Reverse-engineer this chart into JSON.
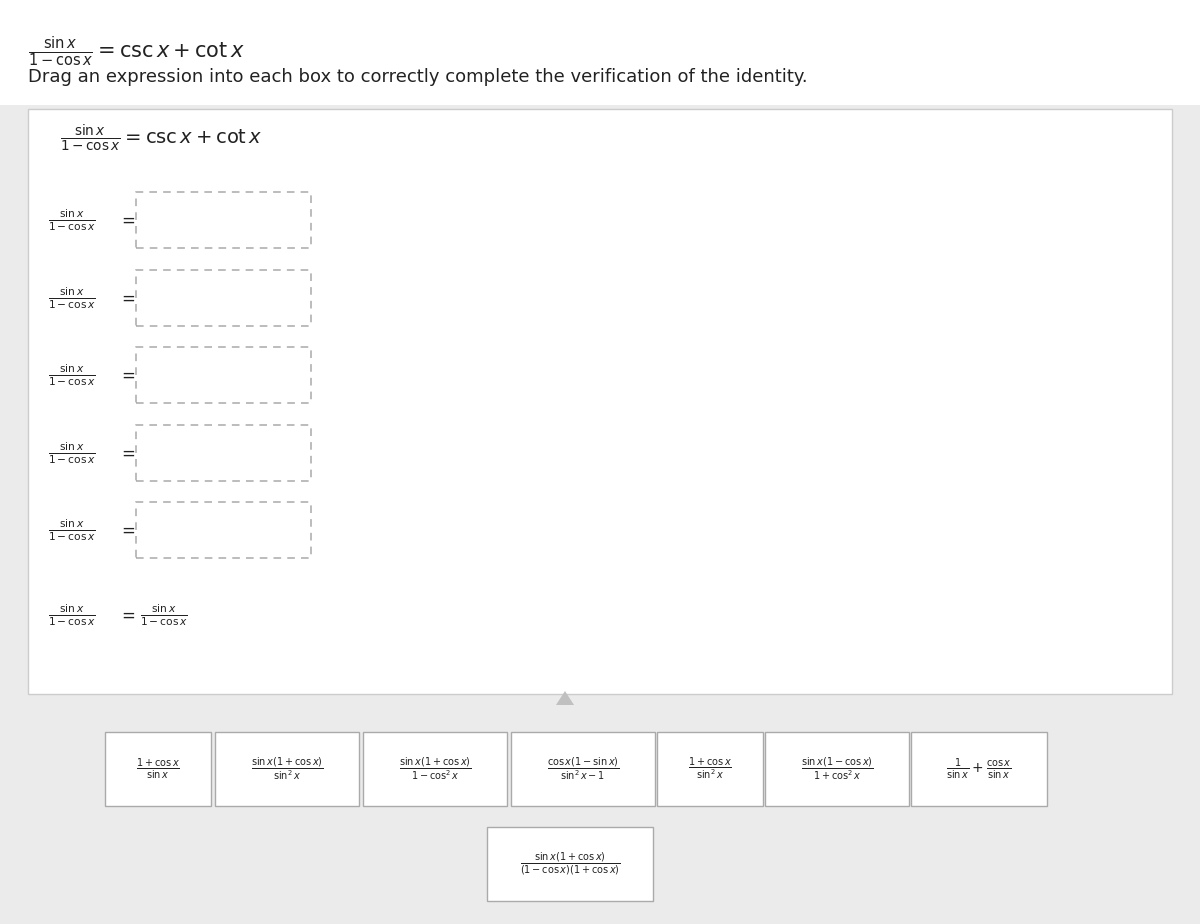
{
  "bg_color": "#ebebeb",
  "white_panel_color": "#ffffff",
  "panel_border_color": "#cccccc",
  "text_color": "#222222",
  "dashed_box_color": "#aaaaaa",
  "card_bg": "#ffffff",
  "card_border": "#aaaaaa",
  "header_bg": "#ffffff",
  "top_formula": "$\\frac{\\sin x}{1-\\cos x} = \\csc x + \\cot x$",
  "drag_instruction": "Drag an expression into each box to correctly complete the verification of the identity.",
  "panel_formula": "$\\frac{\\sin x}{1-\\cos x} = \\csc x + \\cot x$",
  "step_lhs": "$\\frac{\\sin x}{1-\\cos x}$",
  "last_rhs_num": "$\\sin x$",
  "last_rhs_den": "$1-\\cos x$",
  "card_texts_row1": [
    "$\\frac{1+\\cos x}{\\sin x}$",
    "$\\frac{\\sin x(1+\\cos x)}{\\sin^2 x}$",
    "$\\frac{\\sin x(1+\\cos x)}{1-\\cos^2 x}$",
    "$\\frac{\\cos x(1-\\sin x)}{\\sin^2 x-1}$",
    "$\\frac{1+\\cos x}{\\sin^2 x}$",
    "$\\frac{\\sin x(1-\\cos x)}{1+\\cos^2 x}$",
    "$\\frac{1}{\\sin x}+\\frac{\\cos x}{\\sin x}$"
  ],
  "card_text_row2": "$\\frac{\\sin x(1+\\cos x)}{(1-\\cos x)(1+\\cos x)}$"
}
